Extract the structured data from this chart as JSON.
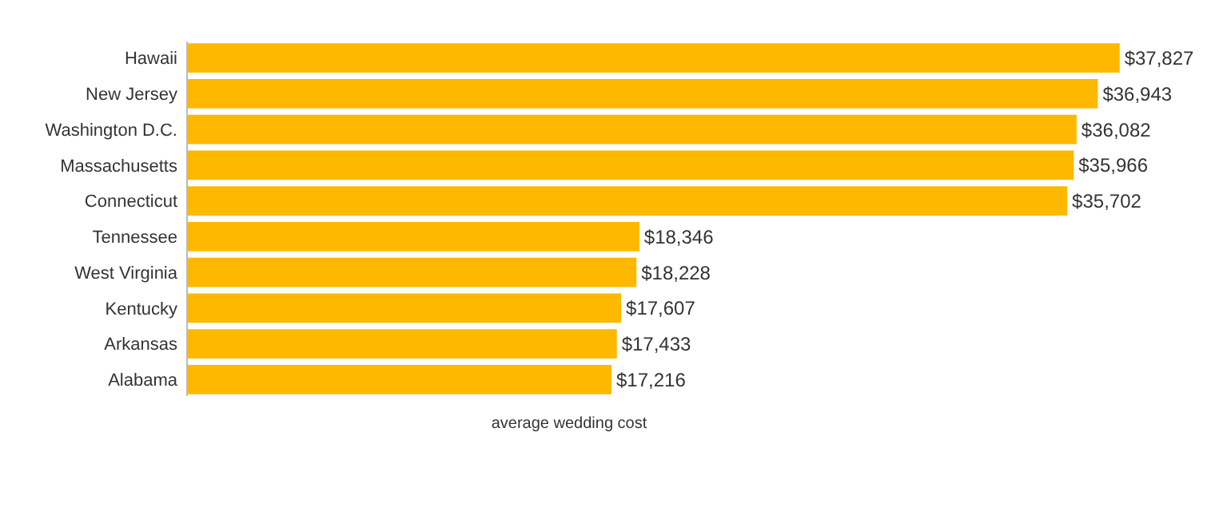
{
  "chart_data": {
    "type": "bar",
    "orientation": "horizontal",
    "xlabel": "average wedding cost",
    "categories": [
      "Hawaii",
      "New Jersey",
      "Washington D.C.",
      "Massachusetts",
      "Connecticut",
      "Tennessee",
      "West Virginia",
      "Kentucky",
      "Arkansas",
      "Alabama"
    ],
    "values": [
      37827,
      36943,
      36082,
      35966,
      35702,
      18346,
      18228,
      17607,
      17433,
      17216
    ],
    "value_labels": [
      "$37,827",
      "$36,943",
      "$36,082",
      "$35,966",
      "$35,702",
      "$18,346",
      "$18,228",
      "$17,607",
      "$17,433",
      "$17,216"
    ],
    "color": "#ffb800",
    "xlim": [
      0,
      38000
    ],
    "tick_labels": "y",
    "grid": false
  }
}
